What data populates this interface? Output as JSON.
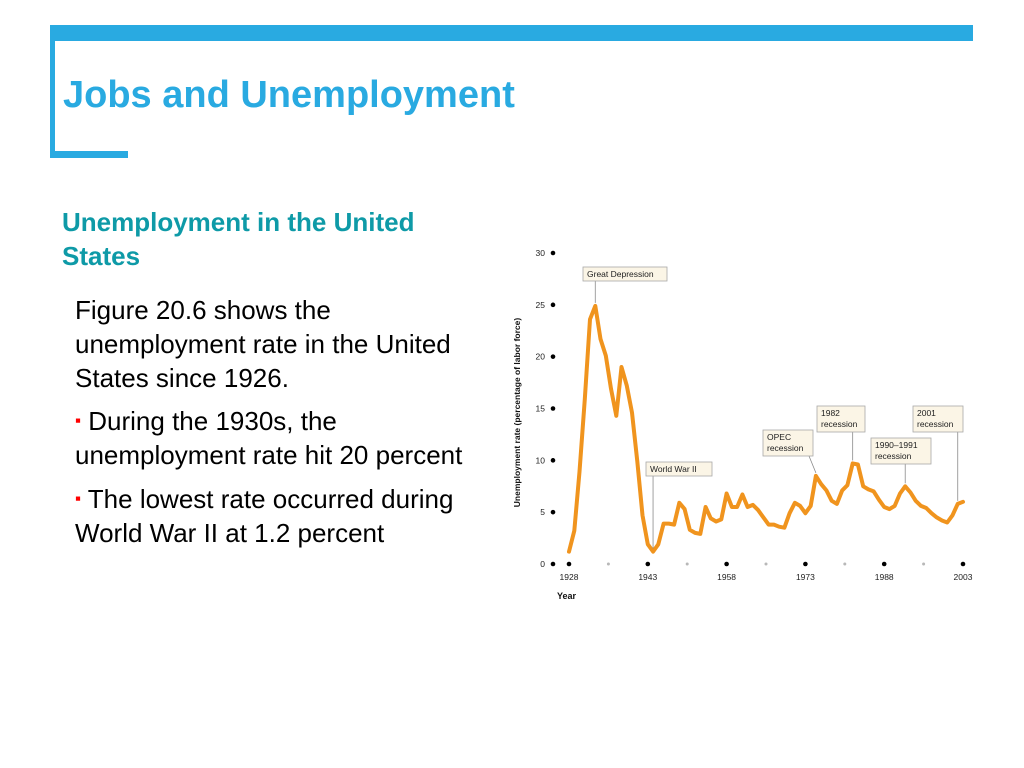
{
  "slide": {
    "title": "Jobs and Unemployment",
    "heading": "Unemployment in the United States",
    "paragraph": "Figure 20.6 shows the unemployment rate in the United States since 1926.",
    "bullet_marker": "▪",
    "bullets": [
      "During the 1930s, the unemployment rate hit 20 percent",
      "The lowest rate occurred during World War II at 1.2 percent"
    ]
  },
  "colors": {
    "accent": "#29aae1",
    "heading": "#0e9aa7",
    "bullet": "#ff0000",
    "line": "#f0941e"
  },
  "chart_data": {
    "type": "line",
    "xlabel": "Year",
    "ylabel": "Unemployment rate (percentage of labor force)",
    "xlim": [
      1928,
      2003
    ],
    "ylim": [
      0,
      30
    ],
    "x_ticks": [
      1928,
      1943,
      1958,
      1973,
      1988,
      2003
    ],
    "y_ticks": [
      0,
      5,
      10,
      15,
      20,
      25,
      30
    ],
    "series": [
      {
        "x": [
          1928,
          1929,
          1930,
          1931,
          1932,
          1933,
          1934,
          1935,
          1936,
          1937,
          1938,
          1939,
          1940,
          1941,
          1942,
          1943,
          1944,
          1945,
          1946,
          1947,
          1948,
          1949,
          1950,
          1951,
          1952,
          1953,
          1954,
          1955,
          1956,
          1957,
          1958,
          1959,
          1960,
          1961,
          1962,
          1963,
          1964,
          1965,
          1966,
          1967,
          1968,
          1969,
          1970,
          1971,
          1972,
          1973,
          1974,
          1975,
          1976,
          1977,
          1978,
          1979,
          1980,
          1981,
          1982,
          1983,
          1984,
          1985,
          1986,
          1987,
          1988,
          1989,
          1990,
          1991,
          1992,
          1993,
          1994,
          1995,
          1996,
          1997,
          1998,
          1999,
          2000,
          2001,
          2002,
          2003
        ],
        "values": [
          1.2,
          3.2,
          8.9,
          15.9,
          23.6,
          24.9,
          21.7,
          20.1,
          16.9,
          14.3,
          19.0,
          17.2,
          14.6,
          9.9,
          4.7,
          1.9,
          1.2,
          1.9,
          3.9,
          3.9,
          3.8,
          5.9,
          5.3,
          3.3,
          3.0,
          2.9,
          5.5,
          4.4,
          4.1,
          4.3,
          6.8,
          5.5,
          5.5,
          6.7,
          5.5,
          5.7,
          5.2,
          4.5,
          3.8,
          3.8,
          3.6,
          3.5,
          4.9,
          5.9,
          5.6,
          4.9,
          5.6,
          8.5,
          7.7,
          7.1,
          6.1,
          5.8,
          7.1,
          7.6,
          9.7,
          9.6,
          7.5,
          7.2,
          7.0,
          6.2,
          5.5,
          5.3,
          5.6,
          6.8,
          7.5,
          6.9,
          6.1,
          5.6,
          5.4,
          4.9,
          4.5,
          4.2,
          4.0,
          4.7,
          5.8,
          6.0
        ]
      }
    ],
    "annotations": [
      {
        "label": "Great Depression",
        "x": 1933,
        "y": 24.9
      },
      {
        "label": "World War II",
        "x": 1944,
        "y": 1.2
      },
      {
        "label": "OPEC recession",
        "x": 1975,
        "y": 8.5
      },
      {
        "label": "1982 recession",
        "x": 1982,
        "y": 9.7
      },
      {
        "label": "1990–1991 recession",
        "x": 1992,
        "y": 7.5
      },
      {
        "label": "2001 recession",
        "x": 2002,
        "y": 5.8
      }
    ]
  }
}
